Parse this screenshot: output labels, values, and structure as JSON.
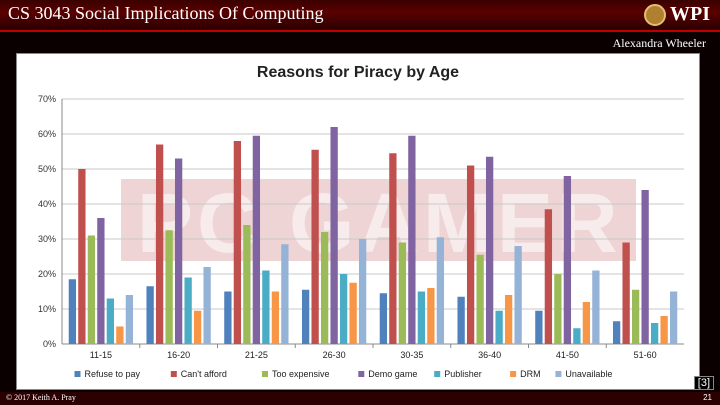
{
  "header": {
    "course": "CS 3043 Social Implications Of Computing",
    "logo_text": "WPI",
    "author": "Alexandra Wheeler"
  },
  "watermark": "PC GAMER",
  "reference": "[3]",
  "footer": {
    "copyright": "© 2017 Keith A. Pray",
    "page": "21"
  },
  "chart_data": {
    "type": "bar",
    "title": "Reasons for Piracy by Age",
    "xlabel": "",
    "ylabel": "",
    "ylim": [
      0,
      70
    ],
    "y_ticks": [
      "0%",
      "10%",
      "20%",
      "30%",
      "40%",
      "50%",
      "60%",
      "70%"
    ],
    "categories": [
      "11-15",
      "16-20",
      "21-25",
      "26-30",
      "30-35",
      "36-40",
      "41-50",
      "51-60"
    ],
    "series": [
      {
        "name": "Refuse to pay",
        "color": "#4f81bd",
        "values": [
          18.5,
          16.5,
          15,
          15.5,
          14.5,
          13.5,
          9.5,
          6.5
        ]
      },
      {
        "name": "Can't afford",
        "color": "#c0504d",
        "values": [
          50,
          57,
          58,
          55.5,
          54.5,
          51,
          38.5,
          29
        ]
      },
      {
        "name": "Too expensive",
        "color": "#9bbb59",
        "values": [
          31,
          32.5,
          34,
          32,
          29,
          25.5,
          20,
          15.5
        ]
      },
      {
        "name": "Demo game",
        "color": "#8064a2",
        "values": [
          36,
          53,
          59.5,
          62,
          59.5,
          53.5,
          48,
          44
        ]
      },
      {
        "name": "Publisher",
        "color": "#4bacc6",
        "values": [
          13,
          19,
          21,
          20,
          15,
          9.5,
          4.5,
          6
        ]
      },
      {
        "name": "DRM",
        "color": "#f79646",
        "values": [
          5,
          9.5,
          15,
          17.5,
          16,
          14,
          12,
          8
        ]
      },
      {
        "name": "Unavailable",
        "color": "#95b3d7",
        "values": [
          14,
          22,
          28.5,
          30,
          30.5,
          28,
          21,
          15
        ]
      }
    ]
  }
}
